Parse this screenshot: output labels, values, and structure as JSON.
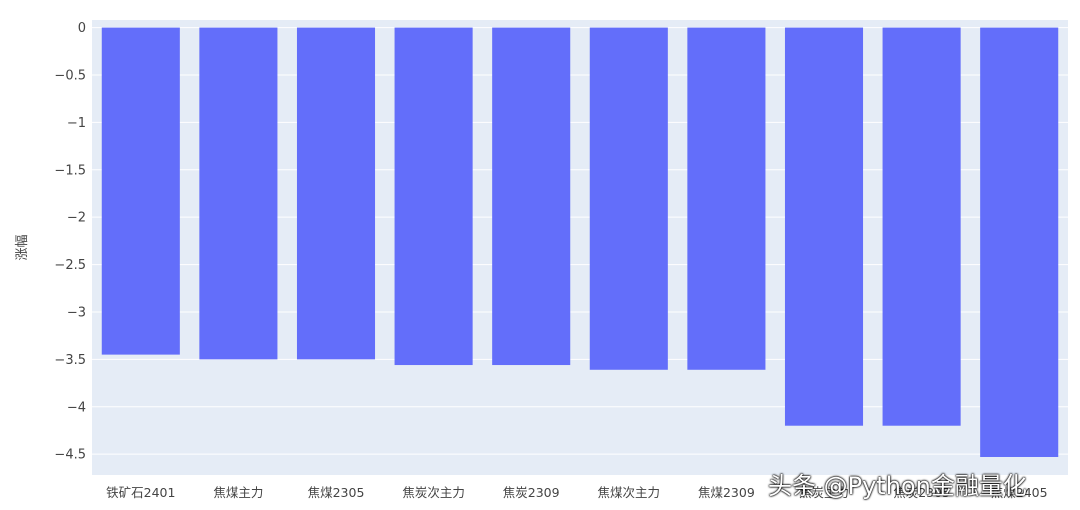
{
  "chart_data": {
    "type": "bar",
    "title": "",
    "xlabel": "",
    "ylabel": "涨幅",
    "categories": [
      "铁矿石2401",
      "焦煤主力",
      "焦煤2305",
      "焦炭次主力",
      "焦炭2309",
      "焦煤次主力",
      "焦煤2309",
      "焦炭主力",
      "焦炭2305",
      "焦煤2405"
    ],
    "values": [
      -3.45,
      -3.5,
      -3.5,
      -3.56,
      -3.56,
      -3.61,
      -3.61,
      -4.2,
      -4.2,
      -4.53
    ],
    "ylim": [
      -4.72,
      0.08
    ],
    "yticks": [
      0,
      -0.5,
      -1,
      -1.5,
      -2,
      -2.5,
      -3,
      -3.5,
      -4,
      -4.5
    ],
    "ytick_labels": [
      "0",
      "−0.5",
      "−1",
      "−1.5",
      "−2",
      "−2.5",
      "−3",
      "−3.5",
      "−4",
      "−4.5"
    ],
    "grid": true,
    "colors": {
      "bar": "#636efa",
      "plot_bg": "#e5ecf6",
      "grid": "#ffffff"
    }
  },
  "watermark": "头条 @Python金融量化"
}
